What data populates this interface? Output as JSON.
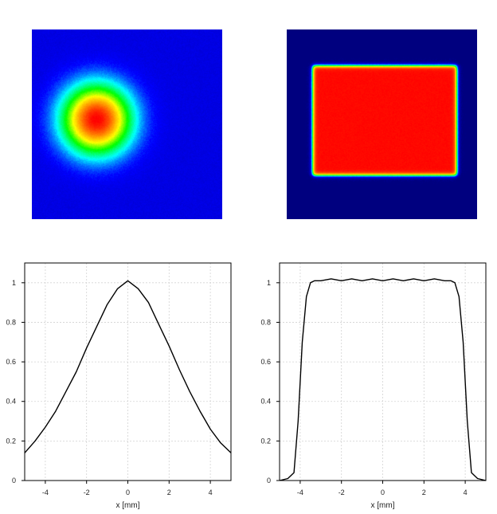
{
  "chart_data": [
    {
      "type": "heatmap",
      "profile": "gaussian",
      "colormap": [
        "#00007f",
        "#0000ff",
        "#00ffff",
        "#00ff00",
        "#ffff00",
        "#ff8000",
        "#ff0000"
      ]
    },
    {
      "type": "heatmap",
      "profile": "flat-top",
      "colormap": [
        "#00007f",
        "#0000ff",
        "#00ffff",
        "#00ff00",
        "#ffff00",
        "#ff8000",
        "#ff0000"
      ]
    },
    {
      "type": "line",
      "xlabel": "x [mm]",
      "ylabel": "",
      "xlim": [
        -5,
        5
      ],
      "ylim": [
        0,
        1.1
      ],
      "grid": true,
      "xticks": [
        "-4",
        "-2",
        "0",
        "2",
        "4"
      ],
      "yticks": [
        "0",
        "0.2",
        "0.4",
        "0.6",
        "0.8",
        "1"
      ],
      "series": [
        {
          "x": [
            -5,
            -4.5,
            -4,
            -3.5,
            -3,
            -2.5,
            -2,
            -1.5,
            -1,
            -0.5,
            0,
            0.5,
            1,
            1.5,
            2,
            2.5,
            3,
            3.5,
            4,
            4.5,
            5
          ],
          "y": [
            0.14,
            0.2,
            0.27,
            0.35,
            0.45,
            0.55,
            0.67,
            0.78,
            0.89,
            0.97,
            1.01,
            0.97,
            0.9,
            0.79,
            0.68,
            0.56,
            0.45,
            0.35,
            0.26,
            0.19,
            0.14
          ]
        }
      ]
    },
    {
      "type": "line",
      "xlabel": "x [mm]",
      "ylabel": "",
      "xlim": [
        -5,
        5
      ],
      "ylim": [
        0,
        1.1
      ],
      "grid": true,
      "xticks": [
        "-4",
        "-2",
        "0",
        "2",
        "4"
      ],
      "yticks": [
        "0",
        "0.2",
        "0.4",
        "0.6",
        "0.8",
        "1"
      ],
      "series": [
        {
          "x": [
            -5,
            -4.6,
            -4.3,
            -4.1,
            -3.9,
            -3.7,
            -3.5,
            -3.3,
            -3,
            -2.5,
            -2,
            -1.5,
            -1,
            -0.5,
            0,
            0.5,
            1,
            1.5,
            2,
            2.5,
            3,
            3.3,
            3.5,
            3.7,
            3.9,
            4.1,
            4.3,
            4.6,
            5
          ],
          "y": [
            0.0,
            0.01,
            0.04,
            0.3,
            0.7,
            0.93,
            1.0,
            1.01,
            1.01,
            1.02,
            1.01,
            1.02,
            1.01,
            1.02,
            1.01,
            1.02,
            1.01,
            1.02,
            1.01,
            1.02,
            1.01,
            1.01,
            1.0,
            0.93,
            0.7,
            0.3,
            0.04,
            0.01,
            0.0
          ]
        }
      ]
    }
  ]
}
